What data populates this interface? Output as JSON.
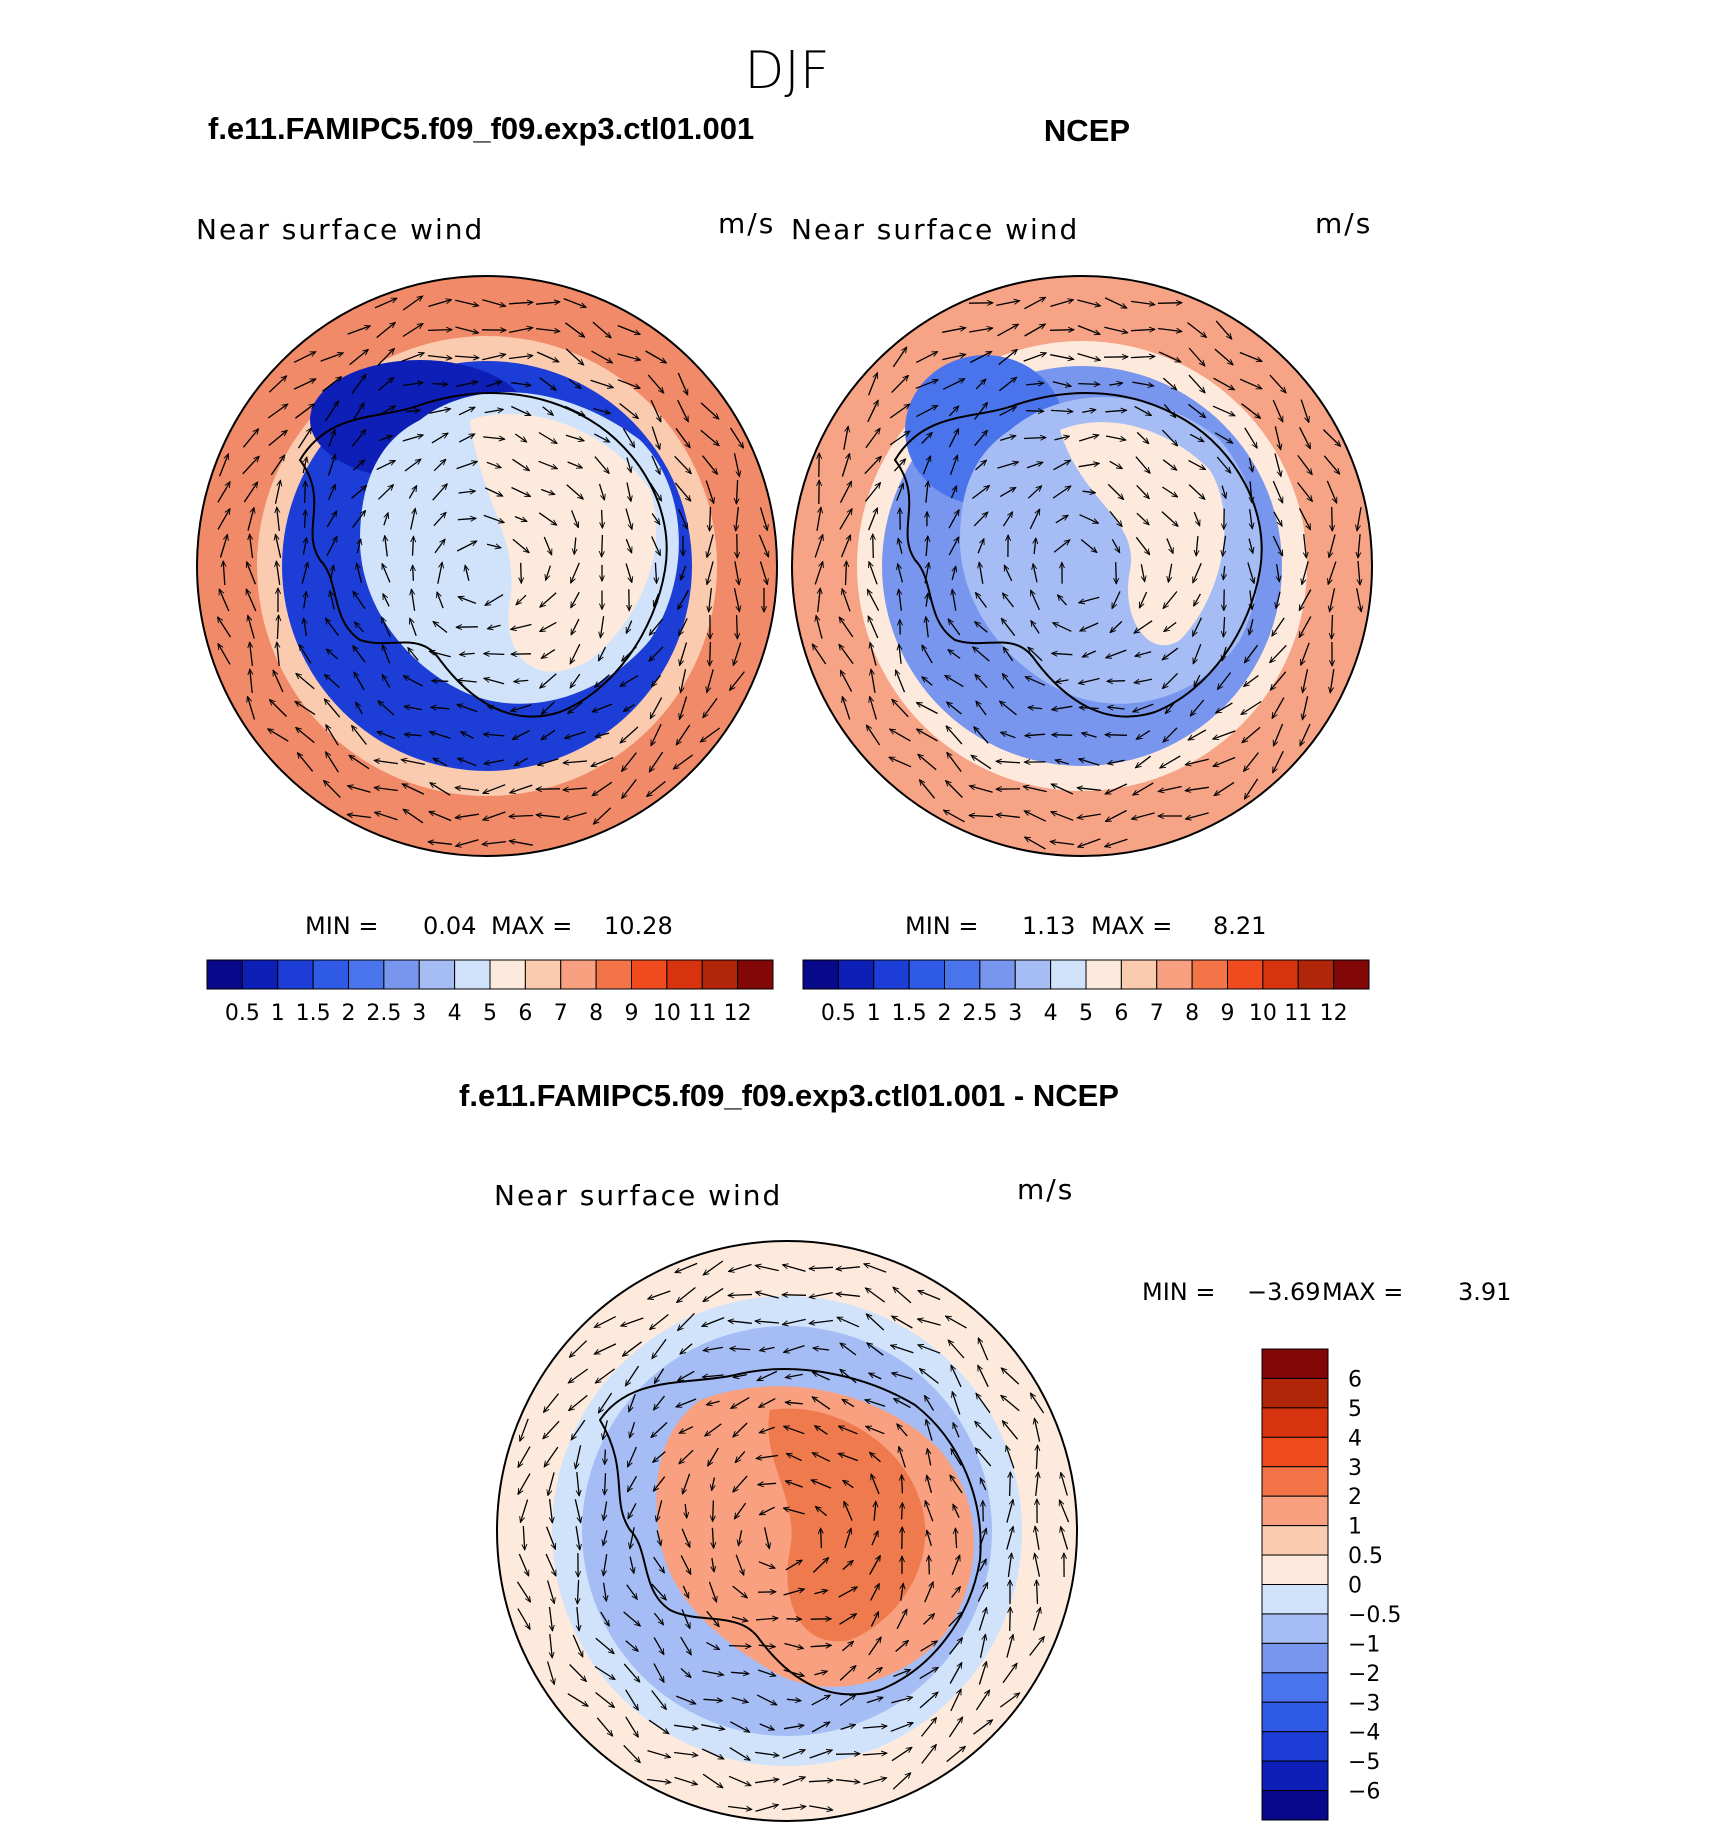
{
  "figure": {
    "title": "DJF"
  },
  "panels": {
    "model": {
      "case_title": "f.e11.FAMIPC5.f09_f09.exp3.ctl01.001",
      "variable": "Near surface wind",
      "units": "m/s",
      "min_label": "MIN =",
      "min_value": "0.04",
      "max_label": "MAX =",
      "max_value": "10.28"
    },
    "obs": {
      "case_title": "NCEP",
      "variable": "Near surface wind",
      "units": "m/s",
      "min_label": "MIN =",
      "min_value": "1.13",
      "max_label": "MAX =",
      "max_value": "8.21"
    },
    "diff": {
      "case_title": "f.e11.FAMIPC5.f09_f09.exp3.ctl01.001 - NCEP",
      "variable": "Near surface wind",
      "units": "m/s",
      "min_label": "MIN =",
      "min_value": "−3.69",
      "max_label": "MAX =",
      "max_value": "3.91"
    }
  },
  "colorbars": {
    "speed": {
      "tick_labels": [
        "0.5",
        "1",
        "1.5",
        "2",
        "2.5",
        "3",
        "4",
        "5",
        "6",
        "7",
        "8",
        "9",
        "10",
        "11",
        "12"
      ],
      "colors": [
        "#08088a",
        "#0e1fb8",
        "#1d3ed6",
        "#2f5ae6",
        "#4a74eb",
        "#7896ee",
        "#a5bdf4",
        "#d0e3fb",
        "#fdeadc",
        "#fbcbb0",
        "#f8a07f",
        "#f37447",
        "#ef4b1f",
        "#d8330f",
        "#b12509",
        "#820808"
      ]
    },
    "diff": {
      "tick_labels": [
        "6",
        "5",
        "4",
        "3",
        "2",
        "1",
        "0.5",
        "0",
        "−0.5",
        "−1",
        "−2",
        "−3",
        "−4",
        "−5",
        "−6"
      ],
      "colors": [
        "#820808",
        "#b12509",
        "#d8330f",
        "#ef4b1f",
        "#f37447",
        "#f8a07f",
        "#fbcbb0",
        "#fdeadc",
        "#d0e3fb",
        "#a5bdf4",
        "#7896ee",
        "#4a74eb",
        "#2f5ae6",
        "#1d3ed6",
        "#0e1fb8",
        "#08088a"
      ]
    }
  },
  "map_colors": {
    "model": {
      "outer": "#f08a68",
      "ring": "#fbcbb0",
      "trough": "#1d3ed6",
      "trough_deep": "#0e1fb8",
      "interior": "#d0e3fb",
      "interior_warm": "#fdeadc"
    },
    "obs": {
      "outer": "#f6a386",
      "ring": "#fdeadc",
      "trough": "#7896ee",
      "trough_deep": "#4a74eb",
      "interior": "#a5bdf4",
      "interior_warm": "#fdeadc"
    },
    "diff": {
      "outer": "#fdeadc",
      "ring": "#d0e3fb",
      "trough": "#a5bdf4",
      "trough_deep": "#7896ee",
      "interior": "#f8a07f",
      "interior_warm": "#ef7a4e"
    }
  }
}
